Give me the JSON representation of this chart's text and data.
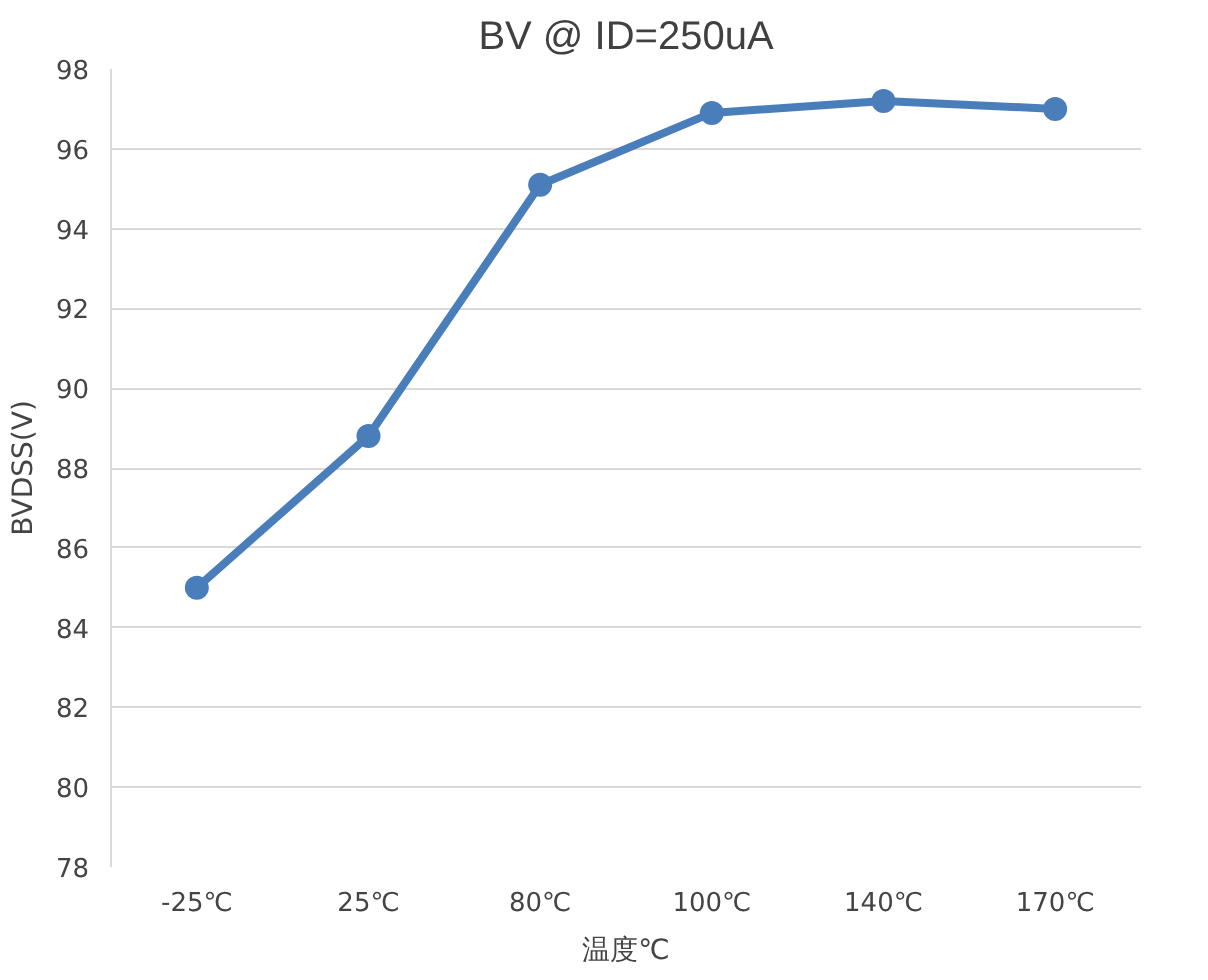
{
  "chart_data": {
    "type": "line",
    "title": "BV @ ID=250uA",
    "xlabel": "温度℃",
    "ylabel": "BVDSS(V)",
    "categories": [
      "-25℃",
      "25℃",
      "80℃",
      "100℃",
      "140℃",
      "170℃"
    ],
    "series": [
      {
        "color": "#4a7ebb",
        "values": [
          85.0,
          88.8,
          95.1,
          96.9,
          97.2,
          97.0
        ]
      }
    ],
    "ylim": [
      78,
      98
    ],
    "yticks": [
      78,
      80,
      82,
      84,
      86,
      88,
      90,
      92,
      94,
      96,
      98
    ],
    "grid": "y",
    "marker": "circle",
    "line_style": "solid"
  }
}
